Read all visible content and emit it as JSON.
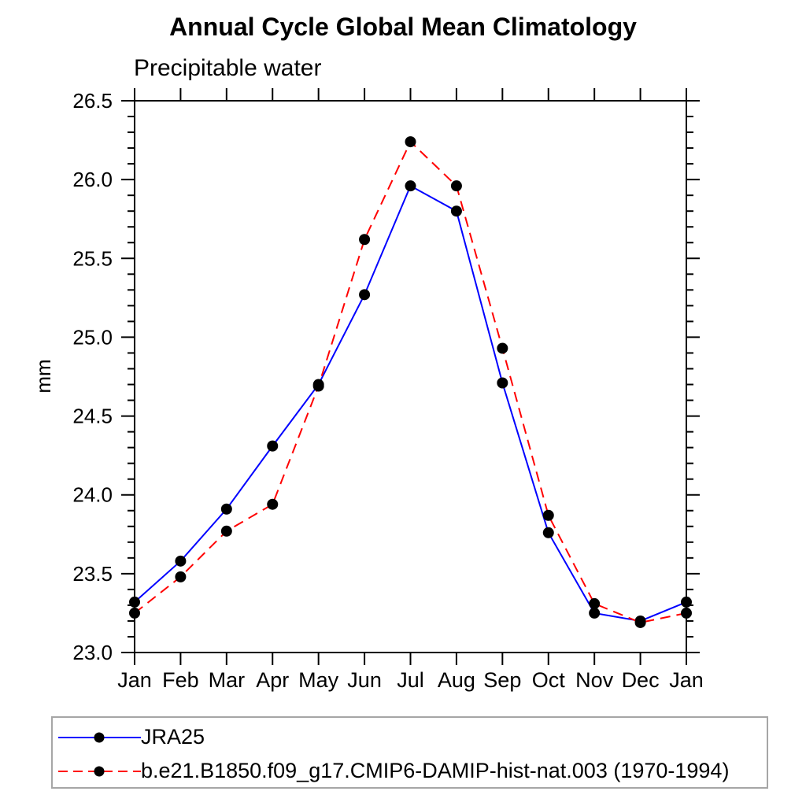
{
  "page": {
    "background": "#ffffff"
  },
  "chart_data": {
    "type": "line",
    "title": "Annual Cycle Global Mean Climatology",
    "subtitle": "Precipitable water",
    "ylabel": "mm",
    "xlabel": "",
    "categories": [
      "Jan",
      "Feb",
      "Mar",
      "Apr",
      "May",
      "Jun",
      "Jul",
      "Aug",
      "Sep",
      "Oct",
      "Nov",
      "Dec",
      "Jan"
    ],
    "series": [
      {
        "name": "JRA25",
        "color": "#0000ff",
        "line_style": "solid",
        "marker": "filled-circle",
        "marker_color": "#000000",
        "values": [
          23.32,
          23.58,
          23.91,
          24.31,
          24.7,
          25.27,
          25.96,
          25.8,
          24.71,
          23.76,
          23.25,
          23.2,
          23.32
        ]
      },
      {
        "name": "b.e21.B1850.f09_g17.CMIP6-DAMIP-hist-nat.003 (1970-1994)",
        "color": "#ff0000",
        "line_style": "dashed",
        "marker": "filled-circle",
        "marker_color": "#000000",
        "values": [
          23.25,
          23.48,
          23.77,
          23.94,
          24.69,
          25.62,
          26.24,
          25.96,
          24.93,
          23.87,
          23.31,
          23.19,
          23.25
        ]
      }
    ],
    "ylim": [
      23.0,
      26.5
    ],
    "ytick_step": 0.5,
    "yminor_step": 0.1,
    "ytick_labels": [
      "23.0",
      "23.5",
      "24.0",
      "24.5",
      "25.0",
      "25.5",
      "26.0",
      "26.5"
    ],
    "grid": false,
    "legend_position": "bottom-left-box",
    "axis_color": "#000000",
    "tick_label_color": "#000000"
  }
}
